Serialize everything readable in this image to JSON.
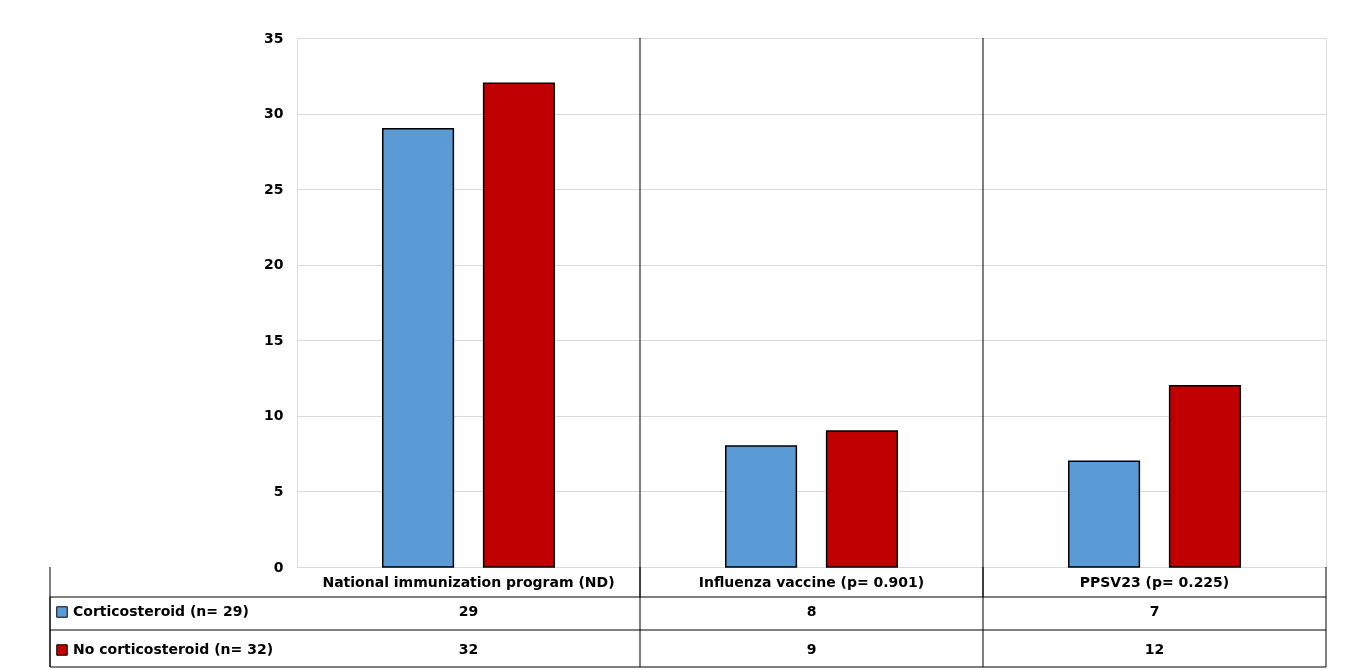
{
  "chart_data": {
    "type": "bar",
    "categories": [
      "National immunization program (ND)",
      "Influenza vaccine (p= 0.901)",
      "PPSV23 (p= 0.225)"
    ],
    "series": [
      {
        "name": "Corticosteroid (n= 29)",
        "color": "#5b9bd5",
        "values": [
          29,
          8,
          7
        ]
      },
      {
        "name": "No corticosteroid (n= 32)",
        "color": "#c00000",
        "values": [
          32,
          9,
          12
        ]
      }
    ],
    "ylim": [
      0,
      35
    ],
    "yticks": [
      0,
      5,
      10,
      15,
      20,
      25,
      30,
      35
    ],
    "grid": "y",
    "legend": "bottom left",
    "data_labels": true
  }
}
